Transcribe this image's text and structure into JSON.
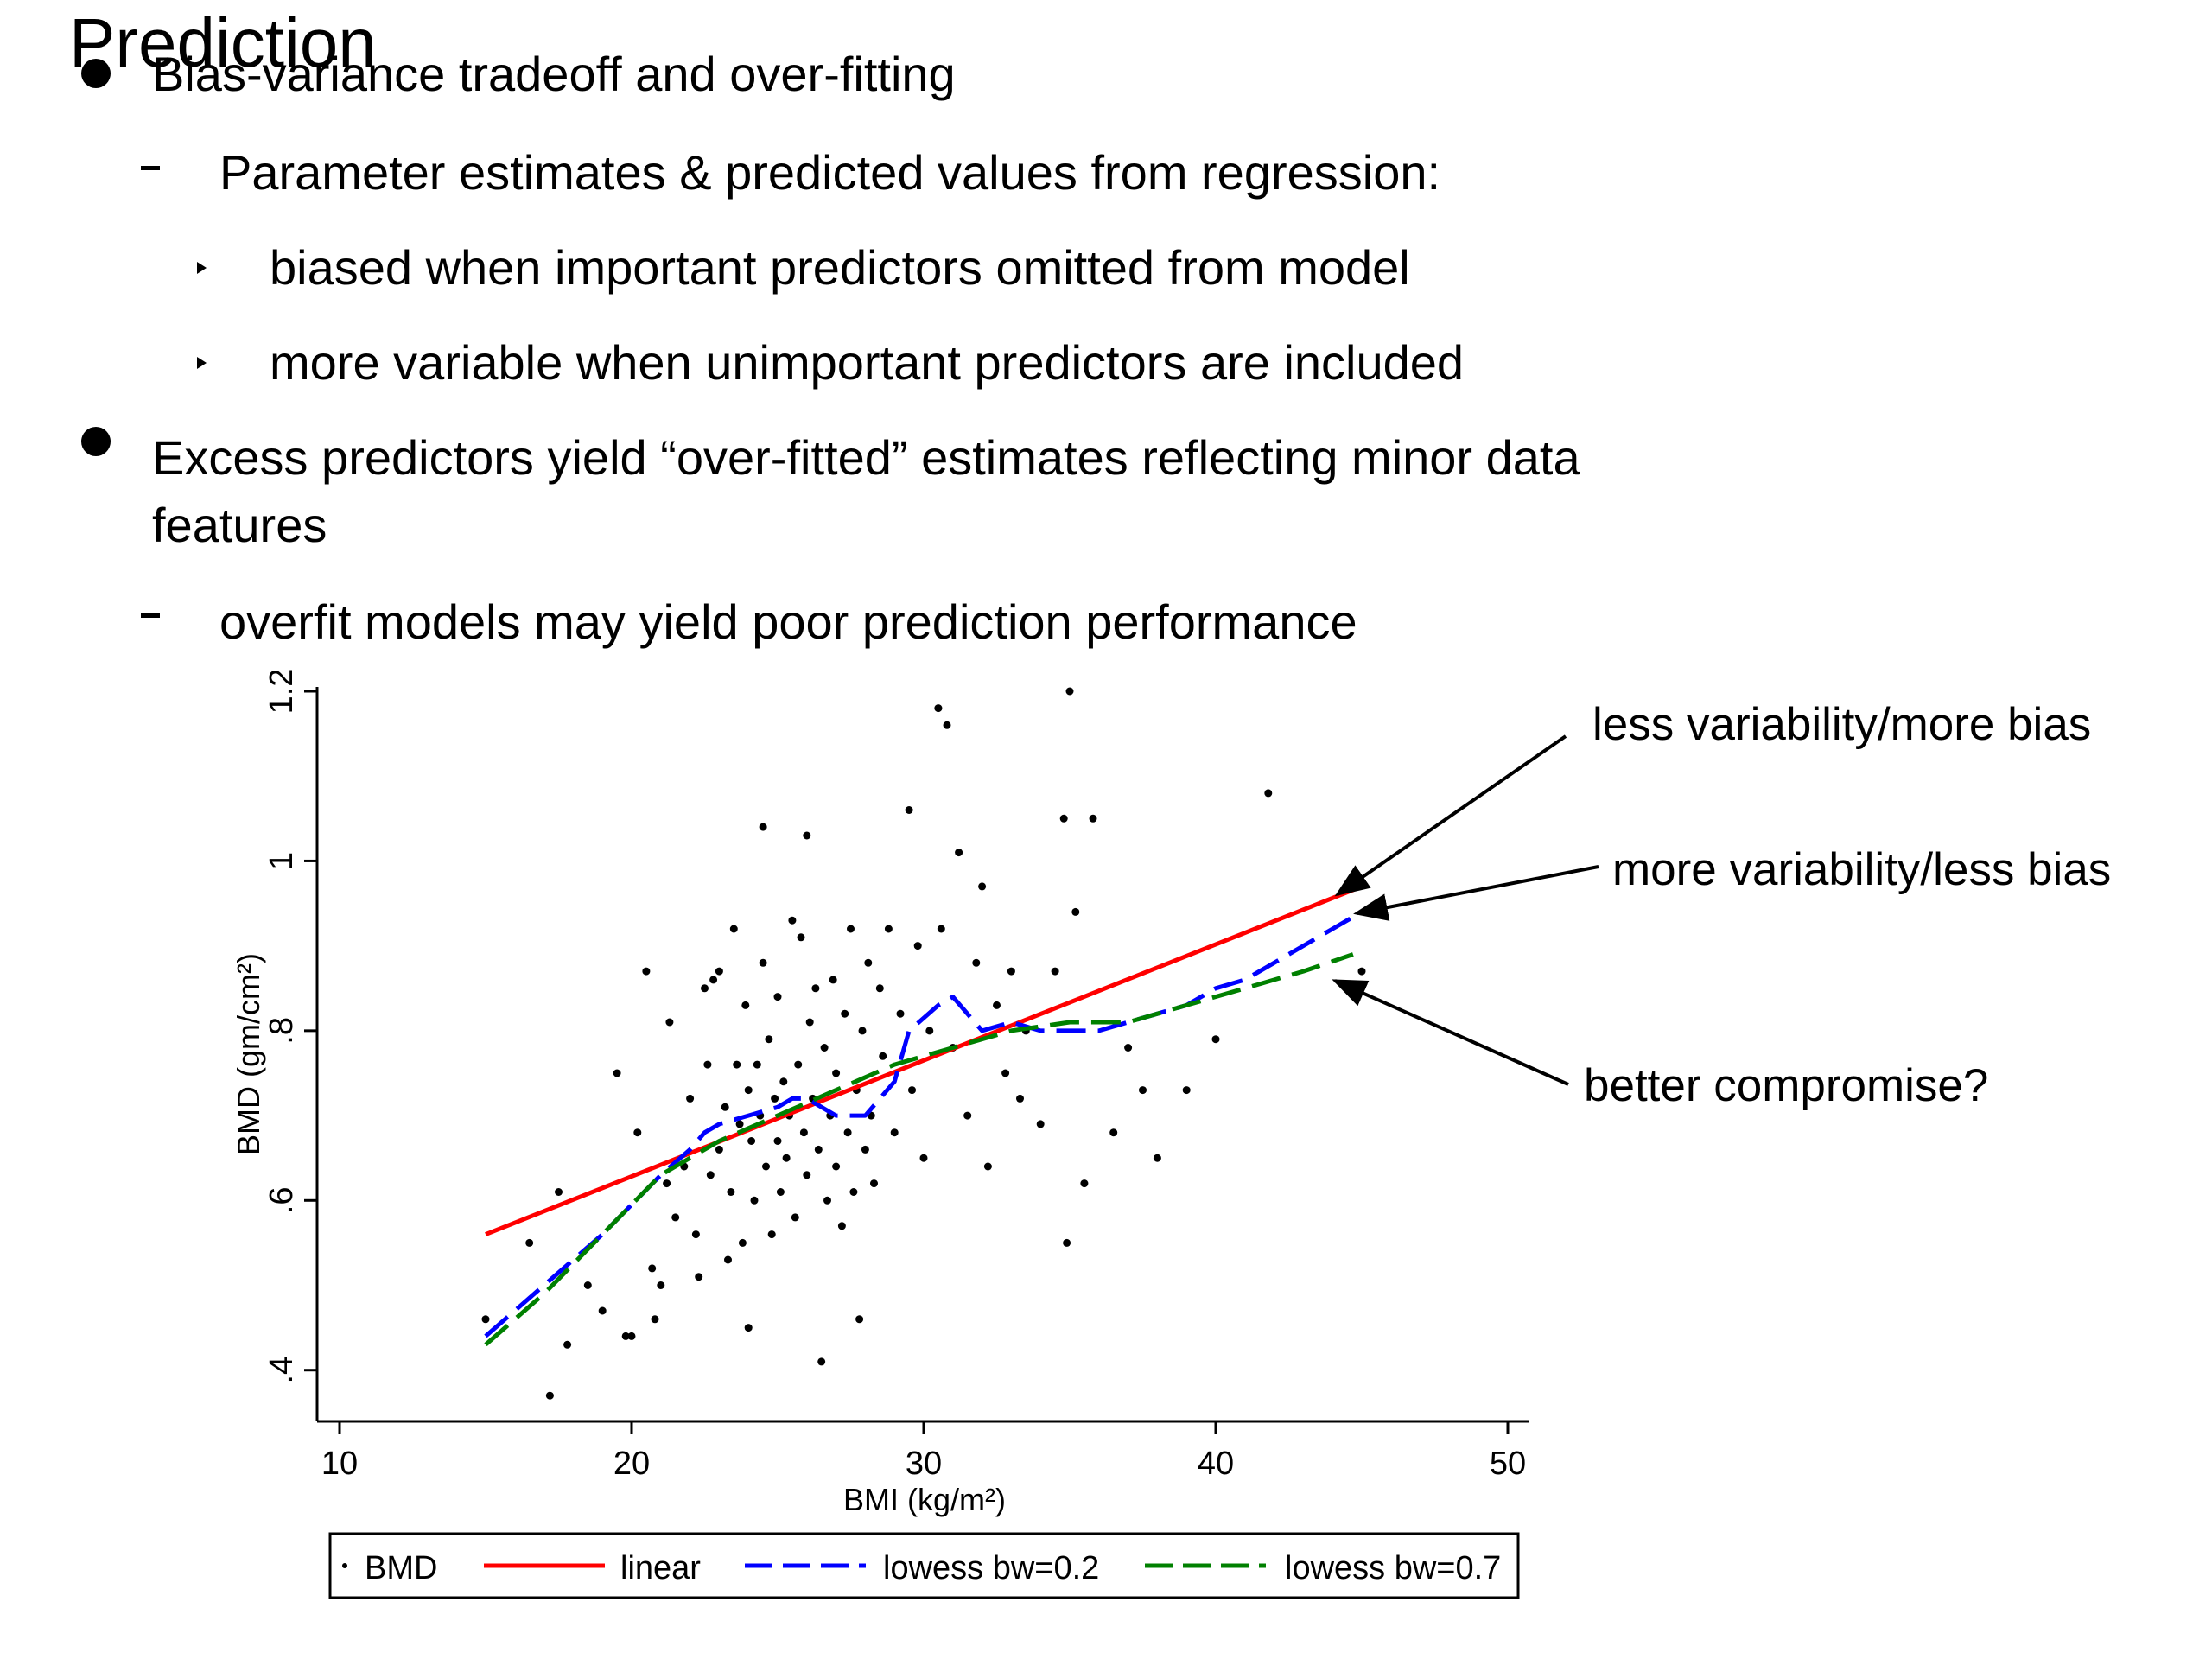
{
  "slide": {
    "title": "Prediction",
    "bullets": [
      {
        "level": 1,
        "text": "Bias-variance tradeoff and over-fitting"
      },
      {
        "level": 2,
        "text": "Parameter estimates & predicted values from regression:"
      },
      {
        "level": 3,
        "text": "biased when important predictors omitted from model"
      },
      {
        "level": 3,
        "text": "more variable when unimportant predictors are included"
      },
      {
        "level": 1,
        "text": "Excess predictors yield “over-fitted” estimates reflecting minor data",
        "continuation": "features"
      },
      {
        "level": 2,
        "text": "overfit models may yield poor prediction performance"
      }
    ],
    "annotations": [
      {
        "text": "less variability/more bias",
        "points_to": "linear"
      },
      {
        "text": "more variability/less bias",
        "points_to": "lowess bw=0.2"
      },
      {
        "text": "better compromise?",
        "points_to": "lowess bw=0.7"
      }
    ]
  },
  "chart_data": {
    "type": "scatter",
    "xlabel": "BMI (kg/m²)",
    "ylabel": "BMD (gm/cm²)",
    "xlim": [
      10,
      50
    ],
    "ylim": [
      0.36,
      1.2
    ],
    "x_ticks": [
      10,
      20,
      30,
      40,
      50
    ],
    "x_tick_labels": [
      "10",
      "20",
      "30",
      "40",
      "50"
    ],
    "y_ticks": [
      0.4,
      0.6,
      0.8,
      1.0,
      1.2
    ],
    "y_tick_labels": [
      ".4",
      ".6",
      ".8",
      "1",
      "1.2"
    ],
    "grid": false,
    "legend_position": "bottom",
    "legend": [
      "BMD",
      "linear",
      "lowess bw=0.2",
      "lowess bw=0.7"
    ],
    "colors": {
      "points": "#000000",
      "linear": "#ff0000",
      "lowess_02": "#0000ff",
      "lowess_07": "#008000"
    },
    "scatter": {
      "name": "BMD",
      "points": [
        [
          15.0,
          0.46
        ],
        [
          16.5,
          0.55
        ],
        [
          17.2,
          0.37
        ],
        [
          17.5,
          0.61
        ],
        [
          17.8,
          0.43
        ],
        [
          18.5,
          0.5
        ],
        [
          19.0,
          0.47
        ],
        [
          19.5,
          0.75
        ],
        [
          19.8,
          0.44
        ],
        [
          20.0,
          0.44
        ],
        [
          20.2,
          0.68
        ],
        [
          20.5,
          0.87
        ],
        [
          20.7,
          0.52
        ],
        [
          20.8,
          0.46
        ],
        [
          21.0,
          0.5
        ],
        [
          21.2,
          0.62
        ],
        [
          21.3,
          0.81
        ],
        [
          21.5,
          0.58
        ],
        [
          21.8,
          0.64
        ],
        [
          22.0,
          0.72
        ],
        [
          22.2,
          0.56
        ],
        [
          22.3,
          0.51
        ],
        [
          22.5,
          0.85
        ],
        [
          22.6,
          0.76
        ],
        [
          22.7,
          0.63
        ],
        [
          22.8,
          0.86
        ],
        [
          23.0,
          0.66
        ],
        [
          23.0,
          0.87
        ],
        [
          23.2,
          0.71
        ],
        [
          23.3,
          0.53
        ],
        [
          23.4,
          0.61
        ],
        [
          23.5,
          0.92
        ],
        [
          23.6,
          0.76
        ],
        [
          23.7,
          0.69
        ],
        [
          23.8,
          0.55
        ],
        [
          23.9,
          0.83
        ],
        [
          24.0,
          0.45
        ],
        [
          24.0,
          0.73
        ],
        [
          24.1,
          0.67
        ],
        [
          24.2,
          0.6
        ],
        [
          24.3,
          0.76
        ],
        [
          24.4,
          0.7
        ],
        [
          24.5,
          1.04
        ],
        [
          24.5,
          0.88
        ],
        [
          24.6,
          0.64
        ],
        [
          24.7,
          0.79
        ],
        [
          24.8,
          0.56
        ],
        [
          24.9,
          0.72
        ],
        [
          25.0,
          0.67
        ],
        [
          25.0,
          0.84
        ],
        [
          25.1,
          0.61
        ],
        [
          25.2,
          0.74
        ],
        [
          25.3,
          0.65
        ],
        [
          25.4,
          0.7
        ],
        [
          25.5,
          0.93
        ],
        [
          25.6,
          0.58
        ],
        [
          25.7,
          0.76
        ],
        [
          25.8,
          0.91
        ],
        [
          25.9,
          0.68
        ],
        [
          26.0,
          1.03
        ],
        [
          26.0,
          0.63
        ],
        [
          26.1,
          0.81
        ],
        [
          26.2,
          0.72
        ],
        [
          26.3,
          0.85
        ],
        [
          26.4,
          0.66
        ],
        [
          26.5,
          0.41
        ],
        [
          26.6,
          0.78
        ],
        [
          26.7,
          0.6
        ],
        [
          26.8,
          0.7
        ],
        [
          26.9,
          0.86
        ],
        [
          27.0,
          0.64
        ],
        [
          27.0,
          0.75
        ],
        [
          27.2,
          0.57
        ],
        [
          27.3,
          0.82
        ],
        [
          27.4,
          0.68
        ],
        [
          27.5,
          0.92
        ],
        [
          27.6,
          0.61
        ],
        [
          27.7,
          0.73
        ],
        [
          27.8,
          0.46
        ],
        [
          27.9,
          0.8
        ],
        [
          28.0,
          0.66
        ],
        [
          28.1,
          0.88
        ],
        [
          28.2,
          0.7
        ],
        [
          28.3,
          0.62
        ],
        [
          28.5,
          0.85
        ],
        [
          28.6,
          0.77
        ],
        [
          28.8,
          0.92
        ],
        [
          29.0,
          0.68
        ],
        [
          29.2,
          0.82
        ],
        [
          29.5,
          1.06
        ],
        [
          29.6,
          0.73
        ],
        [
          29.8,
          0.9
        ],
        [
          30.0,
          0.65
        ],
        [
          30.2,
          0.8
        ],
        [
          30.5,
          1.18
        ],
        [
          30.6,
          0.92
        ],
        [
          30.8,
          1.16
        ],
        [
          31.0,
          0.78
        ],
        [
          31.2,
          1.01
        ],
        [
          31.5,
          0.7
        ],
        [
          31.8,
          0.88
        ],
        [
          32.0,
          0.97
        ],
        [
          32.2,
          0.64
        ],
        [
          32.5,
          0.83
        ],
        [
          32.8,
          0.75
        ],
        [
          33.0,
          0.87
        ],
        [
          33.3,
          0.72
        ],
        [
          33.5,
          0.8
        ],
        [
          34.0,
          0.69
        ],
        [
          34.5,
          0.87
        ],
        [
          34.8,
          1.05
        ],
        [
          34.9,
          0.55
        ],
        [
          35.0,
          1.2
        ],
        [
          35.2,
          0.94
        ],
        [
          35.5,
          0.62
        ],
        [
          35.8,
          1.05
        ],
        [
          36.5,
          0.68
        ],
        [
          37.0,
          0.78
        ],
        [
          37.5,
          0.73
        ],
        [
          38.0,
          0.65
        ],
        [
          39.0,
          0.73
        ],
        [
          40.0,
          0.79
        ],
        [
          41.8,
          1.08
        ],
        [
          45.0,
          0.87
        ]
      ]
    },
    "series": [
      {
        "name": "linear",
        "style": "solid",
        "x": [
          15,
          45
        ],
        "y": [
          0.56,
          0.97
        ]
      },
      {
        "name": "lowess bw=0.2",
        "style": "dashed",
        "x": [
          15,
          17,
          19,
          21,
          22,
          22.5,
          23,
          24,
          25,
          25.5,
          26,
          27,
          28,
          29,
          29.5,
          30.5,
          31,
          32,
          33,
          34,
          35,
          36,
          37,
          38,
          39,
          40,
          41,
          42,
          43,
          44,
          45
        ],
        "y": [
          0.44,
          0.5,
          0.56,
          0.63,
          0.66,
          0.68,
          0.69,
          0.7,
          0.71,
          0.72,
          0.72,
          0.7,
          0.7,
          0.74,
          0.8,
          0.83,
          0.84,
          0.8,
          0.81,
          0.8,
          0.8,
          0.8,
          0.81,
          0.82,
          0.83,
          0.85,
          0.86,
          0.88,
          0.9,
          0.92,
          0.94
        ]
      },
      {
        "name": "lowess bw=0.7",
        "style": "dashed",
        "x": [
          15,
          17,
          19,
          21,
          23,
          25,
          27,
          29,
          31,
          33,
          35,
          37,
          39,
          41,
          43,
          44.7
        ],
        "y": [
          0.43,
          0.49,
          0.56,
          0.63,
          0.67,
          0.7,
          0.73,
          0.76,
          0.78,
          0.8,
          0.81,
          0.81,
          0.83,
          0.85,
          0.87,
          0.89
        ]
      }
    ]
  }
}
